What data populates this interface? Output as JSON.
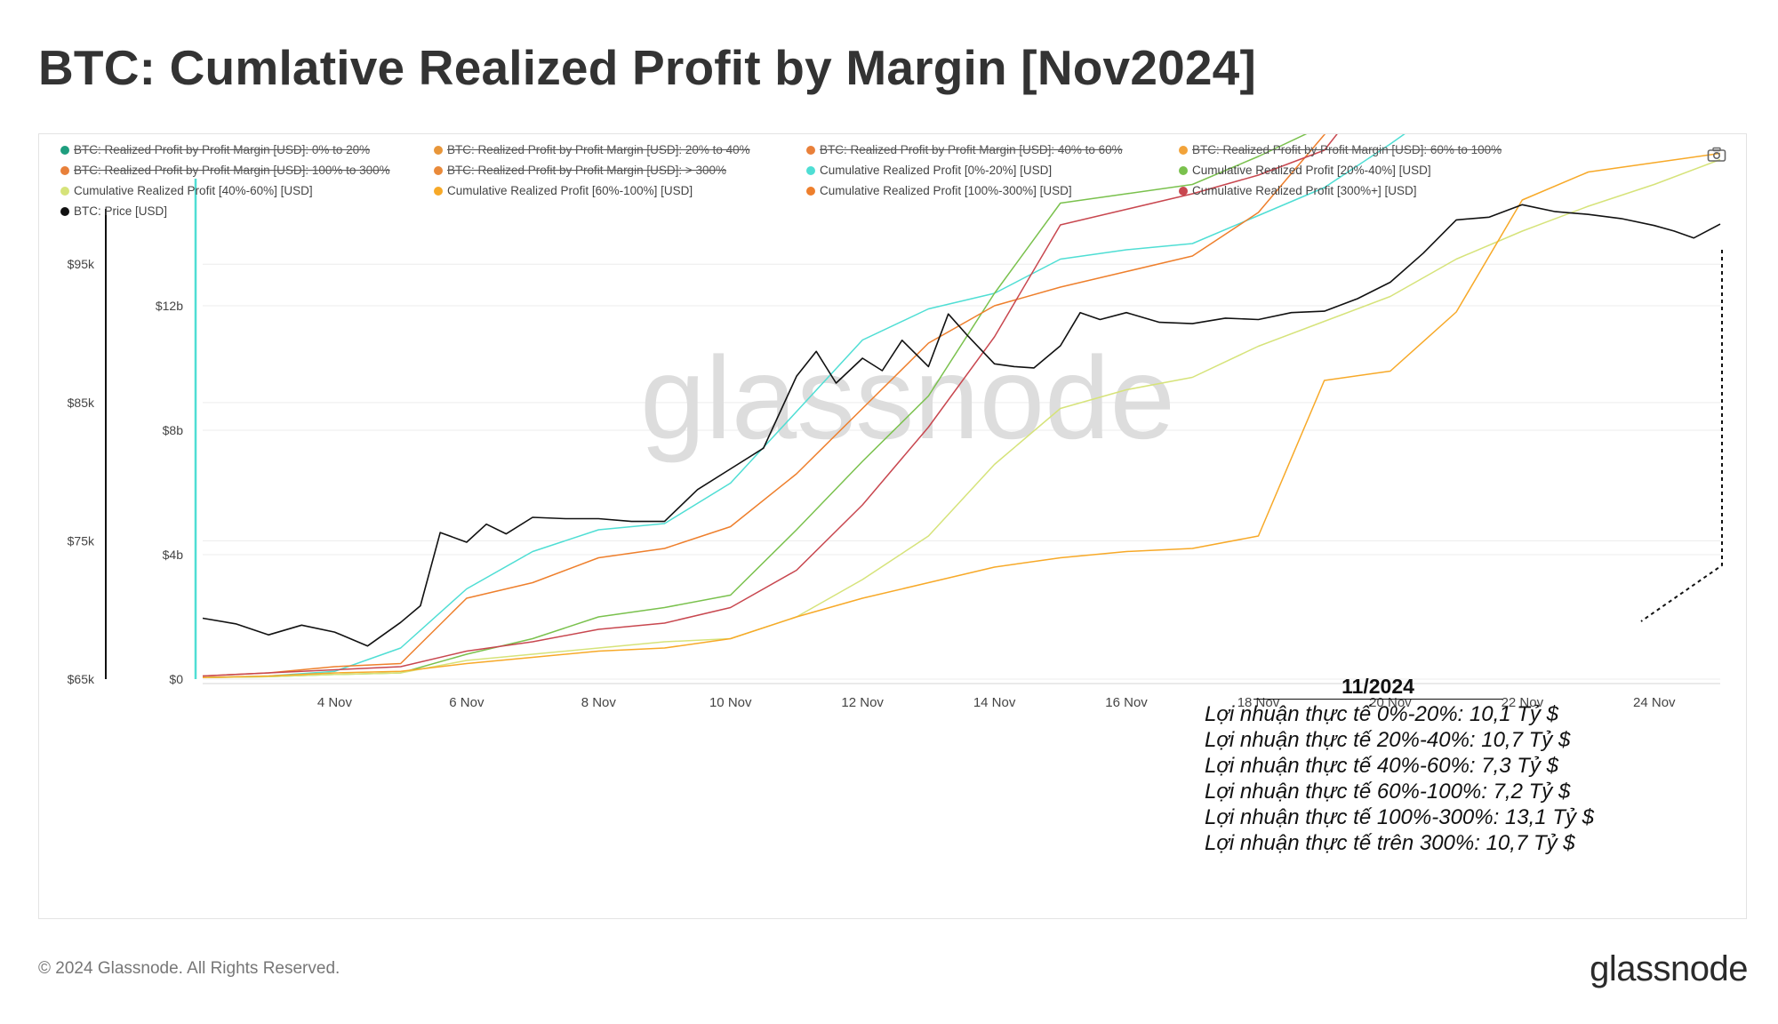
{
  "title": "BTC: Cumlative Realized Profit by Margin [Nov2024]",
  "colors": {
    "teal": "#4fded4",
    "green": "#7ac14d",
    "lightyellow": "#d6e37a",
    "yelloworange": "#f7a928",
    "orange": "#ee7f2c",
    "red": "#c8474f",
    "black": "#111111",
    "grid": "#ececec",
    "watermark": "#dddddd"
  },
  "toolbar": {
    "camera_icon": "camera-icon"
  },
  "legend": [
    {
      "label": "BTC: Realized Profit by Profit Margin [USD]: 0% to 20%",
      "color": "#1e9e7e",
      "enabled": false
    },
    {
      "label": "BTC: Realized Profit by Profit Margin [USD]: 20% to 40%",
      "color": "#e8963a",
      "enabled": false
    },
    {
      "label": "BTC: Realized Profit by Profit Margin [USD]: 40% to 60%",
      "color": "#e9803a",
      "enabled": false
    },
    {
      "label": "BTC: Realized Profit by Profit Margin [USD]: 60% to 100%",
      "color": "#f2a33a",
      "enabled": false
    },
    {
      "label": "BTC: Realized Profit by Profit Margin [USD]: 100% to 300%",
      "color": "#e8803a",
      "enabled": false
    },
    {
      "label": "BTC: Realized Profit by Profit Margin [USD]: > 300%",
      "color": "#e98a3a",
      "enabled": false
    },
    {
      "label": "Cumulative Realized Profit [0%-20%] [USD]",
      "color": "#4fded4",
      "enabled": true
    },
    {
      "label": "Cumulative Realized Profit [20%-40%] [USD]",
      "color": "#7ac14d",
      "enabled": true
    },
    {
      "label": "Cumulative Realized Profit [40%-60%] [USD]",
      "color": "#d6e37a",
      "enabled": true
    },
    {
      "label": "Cumulative Realized Profit [60%-100%] [USD]",
      "color": "#f7a928",
      "enabled": true
    },
    {
      "label": "Cumulative Realized Profit [100%-300%] [USD]",
      "color": "#ee7f2c",
      "enabled": true
    },
    {
      "label": "Cumulative Realized Profit [300%+] [USD]",
      "color": "#c8474f",
      "enabled": true
    },
    {
      "label": "BTC: Price [USD]",
      "color": "#111111",
      "enabled": true
    }
  ],
  "chart_data": {
    "type": "line",
    "x_axis": {
      "ticks": [
        "4 Nov",
        "6 Nov",
        "8 Nov",
        "10 Nov",
        "12 Nov",
        "14 Nov",
        "16 Nov",
        "18 Nov",
        "20 Nov",
        "22 Nov",
        "24 Nov"
      ],
      "range_days": [
        2,
        25
      ]
    },
    "y_left_price": {
      "ticks": [
        "$65k",
        "$75k",
        "$85k",
        "$95k"
      ],
      "range": [
        65000,
        99000
      ]
    },
    "y_right_profit": {
      "ticks": [
        "$0",
        "$4b",
        "$8b",
        "$12b"
      ],
      "range": [
        0,
        14000000000
      ]
    },
    "watermark": "glassnode",
    "series": [
      {
        "name": "Cumulative Realized Profit [0%-20%] [USD]",
        "axis": "profit",
        "color": "#4fded4",
        "x": [
          2,
          3,
          4,
          5,
          6,
          7,
          8,
          9,
          10,
          11,
          12,
          13,
          14,
          15,
          16,
          17,
          18,
          19,
          20,
          21,
          22,
          23,
          24,
          25
        ],
        "values": [
          0.05,
          0.1,
          0.25,
          1.0,
          2.9,
          4.1,
          4.8,
          5.0,
          6.3,
          8.6,
          10.9,
          11.9,
          12.4,
          13.5,
          13.8,
          14.0,
          14.9,
          15.8,
          17.2,
          18.7,
          20.0,
          20.8,
          21.5,
          22.6
        ]
      },
      {
        "name": "Cumulative Realized Profit [20%-40%] [USD]",
        "axis": "profit",
        "color": "#7ac14d",
        "x": [
          2,
          3,
          4,
          5,
          6,
          7,
          8,
          9,
          10,
          11,
          12,
          13,
          14,
          15,
          16,
          17,
          18,
          19,
          20,
          21,
          22,
          23,
          24,
          25
        ],
        "values": [
          0.05,
          0.08,
          0.15,
          0.2,
          0.8,
          1.3,
          2.0,
          2.3,
          2.7,
          4.8,
          7.0,
          9.1,
          12.4,
          15.3,
          15.6,
          15.9,
          16.8,
          17.8,
          18.8,
          19.5,
          20.2,
          21.4,
          22.1,
          23.8
        ]
      },
      {
        "name": "Cumulative Realized Profit [40%-60%] [USD]",
        "axis": "profit",
        "color": "#d6e37a",
        "x": [
          2,
          3,
          4,
          5,
          6,
          7,
          8,
          9,
          10,
          11,
          12,
          13,
          14,
          15,
          16,
          17,
          18,
          19,
          20,
          21,
          22,
          23,
          24,
          25
        ],
        "values": [
          0.05,
          0.08,
          0.15,
          0.2,
          0.6,
          0.8,
          1.0,
          1.2,
          1.3,
          2.0,
          3.2,
          4.6,
          6.9,
          8.7,
          9.3,
          9.7,
          10.7,
          11.5,
          12.3,
          13.5,
          14.4,
          15.2,
          15.9,
          16.7
        ]
      },
      {
        "name": "Cumulative Realized Profit [60%-100%] [USD]",
        "axis": "profit",
        "color": "#f7a928",
        "x": [
          2,
          3,
          4,
          5,
          6,
          7,
          8,
          9,
          10,
          11,
          12,
          13,
          14,
          15,
          16,
          17,
          18,
          19,
          20,
          21,
          22,
          23,
          24,
          25
        ],
        "values": [
          0.05,
          0.1,
          0.2,
          0.25,
          0.5,
          0.7,
          0.9,
          1.0,
          1.3,
          2.0,
          2.6,
          3.1,
          3.6,
          3.9,
          4.1,
          4.2,
          4.6,
          9.6,
          9.9,
          11.8,
          15.4,
          16.3,
          16.6,
          16.9
        ]
      },
      {
        "name": "Cumulative Realized Profit [100%-300%] [USD]",
        "axis": "profit",
        "color": "#ee7f2c",
        "x": [
          2,
          3,
          4,
          5,
          6,
          7,
          8,
          9,
          10,
          11,
          12,
          13,
          14,
          15,
          16,
          17,
          18,
          19,
          20,
          21,
          22,
          23,
          24,
          25
        ],
        "values": [
          0.1,
          0.2,
          0.4,
          0.5,
          2.6,
          3.1,
          3.9,
          4.2,
          4.9,
          6.6,
          8.7,
          10.8,
          12.0,
          12.6,
          13.1,
          13.6,
          15.0,
          17.5,
          20.4,
          24.8,
          27.4,
          28.1,
          29.0,
          31.2
        ]
      },
      {
        "name": "Cumulative Realized Profit [300%+] [USD]",
        "axis": "profit",
        "color": "#c8474f",
        "x": [
          2,
          3,
          4,
          5,
          6,
          7,
          8,
          9,
          10,
          11,
          12,
          13,
          14,
          15,
          16,
          17,
          18,
          19,
          20,
          21,
          22,
          23,
          24,
          25
        ],
        "values": [
          0.1,
          0.2,
          0.3,
          0.4,
          0.9,
          1.2,
          1.6,
          1.8,
          2.3,
          3.5,
          5.6,
          8.1,
          11.0,
          14.6,
          15.1,
          15.6,
          16.2,
          17.0,
          19.7,
          21.4,
          22.6,
          23.3,
          24.0,
          25.1
        ]
      },
      {
        "name": "BTC: Price [USD]",
        "axis": "price",
        "color": "#111111",
        "x": [
          2,
          2.5,
          3,
          3.5,
          4,
          4.5,
          5,
          5.3,
          5.6,
          6,
          6.3,
          6.6,
          7,
          7.5,
          8,
          8.5,
          9,
          9.5,
          10,
          10.5,
          11,
          11.3,
          11.6,
          12,
          12.3,
          12.6,
          13,
          13.3,
          13.6,
          14,
          14.3,
          14.6,
          15,
          15.3,
          15.6,
          16,
          16.5,
          17,
          17.5,
          18,
          18.5,
          19,
          19.5,
          20,
          20.5,
          21,
          21.5,
          22,
          22.5,
          23,
          23.5,
          24,
          24.3,
          24.6,
          25
        ],
        "values": [
          69400,
          69000,
          68200,
          68900,
          68400,
          67400,
          69100,
          70300,
          75600,
          74900,
          76200,
          75500,
          76700,
          76600,
          76600,
          76400,
          76400,
          78700,
          80200,
          81700,
          86900,
          88700,
          86400,
          88200,
          87300,
          89500,
          87600,
          91400,
          89800,
          87800,
          87600,
          87500,
          89100,
          91500,
          91000,
          91500,
          90800,
          90700,
          91100,
          91000,
          91500,
          91600,
          92500,
          93700,
          95800,
          98200,
          98400,
          99300,
          98800,
          98600,
          98300,
          97800,
          97400,
          96900,
          97900
        ]
      }
    ]
  },
  "annotation": {
    "title": "11/2024",
    "lines": [
      "Lợi nhuận thực tế 0%-20%: 10,1 Tỷ $",
      "Lợi nhuận thực tế 20%-40%: 10,7 Tỷ $",
      "Lợi nhuận thực tế 40%-60%: 7,3 Tỷ $",
      "Lợi nhuận thực tế 60%-100%: 7,2 Tỷ $",
      "Lợi nhuận thực tế 100%-300%: 13,1 Tỷ $",
      "Lợi nhuận thực tế trên 300%: 10,7 Tỷ $"
    ]
  },
  "footer": {
    "copyright": "© 2024 Glassnode. All Rights Reserved.",
    "brand": "glassnode"
  }
}
